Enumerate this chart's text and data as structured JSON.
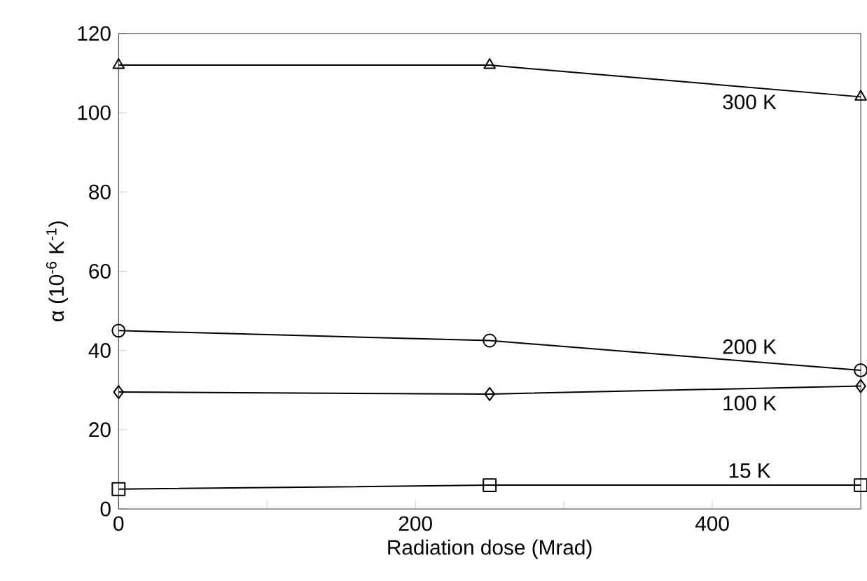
{
  "chart_data": {
    "type": "line",
    "xlabel": "Radiation dose (Mrad)",
    "ylabel": "α (10$^{-6}$ K$^{-1}$)",
    "x": [
      0,
      250,
      500
    ],
    "xlim": [
      0,
      500
    ],
    "ylim": [
      0,
      120
    ],
    "xticks": [
      0,
      {
        "value": 100,
        "label": null
      },
      200,
      {
        "value": 300,
        "label": null
      },
      400
    ],
    "yticks": [
      0,
      20,
      40,
      60,
      80,
      100,
      120
    ],
    "grid": false,
    "line_style": "solid",
    "series": [
      {
        "name": "300 K",
        "color": "#000000",
        "marker": "triangle",
        "values": [
          112,
          112,
          104
        ]
      },
      {
        "name": "200 K",
        "color": "#000000",
        "marker": "circle",
        "values": [
          45,
          42.5,
          35
        ]
      },
      {
        "name": "100 K",
        "color": "#000000",
        "marker": "diamond",
        "values": [
          29.5,
          29,
          31
        ]
      },
      {
        "name": "15 K",
        "color": "#000000",
        "marker": "square",
        "values": [
          5,
          6,
          6
        ]
      }
    ]
  }
}
